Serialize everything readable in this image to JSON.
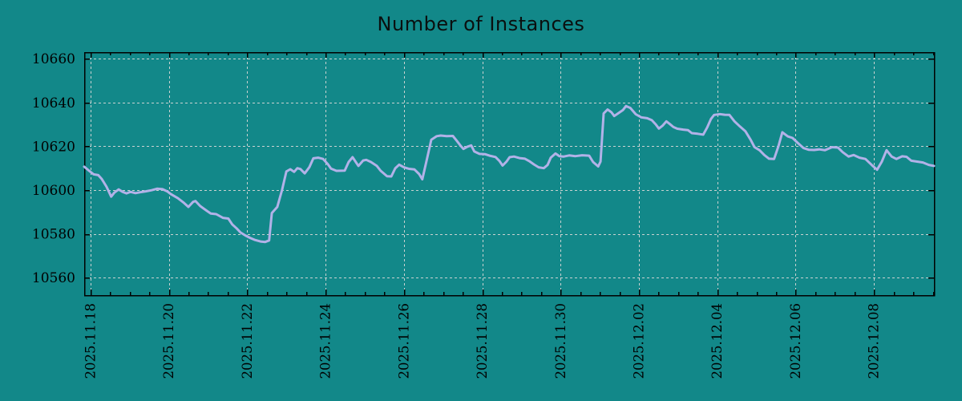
{
  "chart": {
    "title": "Number of Instances"
  },
  "chart_data": {
    "type": "line",
    "title": "Number of Instances",
    "xlabel": "",
    "ylabel": "",
    "grid": true,
    "legend_position": "none",
    "colors": {
      "background": "#128889",
      "line": "#b2b2e8",
      "grid": "#c9d2d1",
      "axis": "#000000",
      "text": "#000000"
    },
    "x_axis": {
      "unit": "days_since_2025.11.18",
      "range_days": [
        -0.16,
        21.53
      ],
      "major_tick_days": 2,
      "minor_tick_days": 0.5,
      "labels": [
        {
          "t": 0,
          "label": "2025.11.18"
        },
        {
          "t": 2,
          "label": "2025.11.20"
        },
        {
          "t": 4,
          "label": "2025.11.22"
        },
        {
          "t": 6,
          "label": "2025.11.24"
        },
        {
          "t": 8,
          "label": "2025.11.26"
        },
        {
          "t": 10,
          "label": "2025.11.28"
        },
        {
          "t": 12,
          "label": "2025.11.30"
        },
        {
          "t": 14,
          "label": "2025.12.02"
        },
        {
          "t": 16,
          "label": "2025.12.04"
        },
        {
          "t": 18,
          "label": "2025.12.06"
        },
        {
          "t": 20,
          "label": "2025.12.08"
        }
      ]
    },
    "y_axis": {
      "range": [
        10552,
        10663
      ],
      "ticks": [
        10560,
        10580,
        10600,
        10620,
        10640,
        10660
      ]
    },
    "series": [
      {
        "name": "instances",
        "color": "#b2b2e8",
        "points": [
          [
            -0.16,
            10610.7
          ],
          [
            -0.06,
            10609.2
          ],
          [
            0.08,
            10607.2
          ],
          [
            0.2,
            10606.8
          ],
          [
            0.29,
            10605.0
          ],
          [
            0.41,
            10601.5
          ],
          [
            0.53,
            10597.0
          ],
          [
            0.61,
            10598.8
          ],
          [
            0.72,
            10600.3
          ],
          [
            0.82,
            10599.2
          ],
          [
            0.92,
            10598.5
          ],
          [
            1.02,
            10599.2
          ],
          [
            1.15,
            10598.6
          ],
          [
            1.27,
            10599.0
          ],
          [
            1.41,
            10599.4
          ],
          [
            1.56,
            10599.9
          ],
          [
            1.7,
            10600.6
          ],
          [
            1.84,
            10600.4
          ],
          [
            1.97,
            10599.3
          ],
          [
            2.05,
            10598.2
          ],
          [
            2.23,
            10596.3
          ],
          [
            2.39,
            10594.1
          ],
          [
            2.5,
            10592.3
          ],
          [
            2.62,
            10594.6
          ],
          [
            2.68,
            10595.0
          ],
          [
            2.8,
            10592.7
          ],
          [
            2.97,
            10590.5
          ],
          [
            3.07,
            10589.3
          ],
          [
            3.21,
            10589.0
          ],
          [
            3.38,
            10587.3
          ],
          [
            3.52,
            10587.0
          ],
          [
            3.62,
            10584.3
          ],
          [
            3.73,
            10582.5
          ],
          [
            3.83,
            10580.6
          ],
          [
            3.95,
            10579.3
          ],
          [
            4.07,
            10578.2
          ],
          [
            4.2,
            10577.2
          ],
          [
            4.34,
            10576.5
          ],
          [
            4.46,
            10576.3
          ],
          [
            4.56,
            10577.0
          ],
          [
            4.63,
            10589.5
          ],
          [
            4.77,
            10592.3
          ],
          [
            4.89,
            10600.0
          ],
          [
            5.0,
            10608.5
          ],
          [
            5.1,
            10609.5
          ],
          [
            5.2,
            10608.3
          ],
          [
            5.28,
            10610.0
          ],
          [
            5.36,
            10609.6
          ],
          [
            5.47,
            10607.6
          ],
          [
            5.59,
            10610.5
          ],
          [
            5.69,
            10614.5
          ],
          [
            5.81,
            10614.8
          ],
          [
            5.94,
            10614.2
          ],
          [
            6.06,
            10611.8
          ],
          [
            6.14,
            10609.8
          ],
          [
            6.28,
            10608.8
          ],
          [
            6.49,
            10608.9
          ],
          [
            6.59,
            10612.8
          ],
          [
            6.69,
            10615.0
          ],
          [
            6.84,
            10611.0
          ],
          [
            6.96,
            10613.5
          ],
          [
            7.04,
            10613.8
          ],
          [
            7.16,
            10612.8
          ],
          [
            7.31,
            10611.0
          ],
          [
            7.41,
            10608.8
          ],
          [
            7.57,
            10606.3
          ],
          [
            7.68,
            10606.2
          ],
          [
            7.78,
            10609.9
          ],
          [
            7.88,
            10611.6
          ],
          [
            8.0,
            10610.4
          ],
          [
            8.13,
            10609.7
          ],
          [
            8.27,
            10609.4
          ],
          [
            8.39,
            10607.3
          ],
          [
            8.47,
            10604.9
          ],
          [
            8.6,
            10615.0
          ],
          [
            8.7,
            10623.0
          ],
          [
            8.84,
            10624.6
          ],
          [
            8.94,
            10624.9
          ],
          [
            9.09,
            10624.6
          ],
          [
            9.25,
            10624.7
          ],
          [
            9.35,
            10622.5
          ],
          [
            9.46,
            10620.0
          ],
          [
            9.52,
            10618.8
          ],
          [
            9.62,
            10619.8
          ],
          [
            9.72,
            10620.4
          ],
          [
            9.8,
            10617.6
          ],
          [
            9.93,
            10616.5
          ],
          [
            10.07,
            10616.4
          ],
          [
            10.21,
            10615.6
          ],
          [
            10.34,
            10615.1
          ],
          [
            10.44,
            10613.3
          ],
          [
            10.52,
            10611.2
          ],
          [
            10.62,
            10613.0
          ],
          [
            10.7,
            10615.0
          ],
          [
            10.81,
            10615.3
          ],
          [
            10.95,
            10614.6
          ],
          [
            11.09,
            10614.3
          ],
          [
            11.2,
            10613.2
          ],
          [
            11.32,
            10611.7
          ],
          [
            11.44,
            10610.4
          ],
          [
            11.57,
            10610.0
          ],
          [
            11.67,
            10611.5
          ],
          [
            11.75,
            10614.8
          ],
          [
            11.87,
            10616.7
          ],
          [
            11.97,
            10615.5
          ],
          [
            12.08,
            10615.3
          ],
          [
            12.22,
            10615.8
          ],
          [
            12.38,
            10615.5
          ],
          [
            12.55,
            10615.9
          ],
          [
            12.73,
            10615.7
          ],
          [
            12.83,
            10612.8
          ],
          [
            12.96,
            10610.8
          ],
          [
            13.02,
            10613.0
          ],
          [
            13.1,
            10635.0
          ],
          [
            13.2,
            10636.8
          ],
          [
            13.3,
            10635.5
          ],
          [
            13.37,
            10633.8
          ],
          [
            13.49,
            10635.3
          ],
          [
            13.59,
            10636.5
          ],
          [
            13.67,
            10638.4
          ],
          [
            13.78,
            10637.5
          ],
          [
            13.92,
            10634.6
          ],
          [
            14.06,
            10633.2
          ],
          [
            14.21,
            10632.8
          ],
          [
            14.33,
            10631.9
          ],
          [
            14.43,
            10630.0
          ],
          [
            14.51,
            10628.1
          ],
          [
            14.61,
            10629.5
          ],
          [
            14.7,
            10631.4
          ],
          [
            14.78,
            10630.3
          ],
          [
            14.88,
            10628.8
          ],
          [
            14.98,
            10628.0
          ],
          [
            15.13,
            10627.6
          ],
          [
            15.25,
            10627.4
          ],
          [
            15.35,
            10626.0
          ],
          [
            15.5,
            10625.7
          ],
          [
            15.64,
            10625.3
          ],
          [
            15.74,
            10628.5
          ],
          [
            15.84,
            10632.5
          ],
          [
            15.92,
            10634.3
          ],
          [
            16.07,
            10634.7
          ],
          [
            16.19,
            10634.4
          ],
          [
            16.31,
            10634.3
          ],
          [
            16.44,
            10631.4
          ],
          [
            16.58,
            10629.0
          ],
          [
            16.72,
            10626.8
          ],
          [
            16.85,
            10623.0
          ],
          [
            16.95,
            10619.6
          ],
          [
            17.08,
            10618.2
          ],
          [
            17.2,
            10616.0
          ],
          [
            17.32,
            10614.3
          ],
          [
            17.45,
            10614.2
          ],
          [
            17.56,
            10620.0
          ],
          [
            17.66,
            10626.4
          ],
          [
            17.8,
            10624.5
          ],
          [
            17.92,
            10623.8
          ],
          [
            18.05,
            10621.6
          ],
          [
            18.2,
            10619.2
          ],
          [
            18.33,
            10618.4
          ],
          [
            18.47,
            10618.3
          ],
          [
            18.6,
            10618.6
          ],
          [
            18.75,
            10618.2
          ],
          [
            18.93,
            10619.6
          ],
          [
            19.08,
            10619.4
          ],
          [
            19.2,
            10617.3
          ],
          [
            19.35,
            10615.3
          ],
          [
            19.48,
            10616.0
          ],
          [
            19.63,
            10614.8
          ],
          [
            19.78,
            10614.2
          ],
          [
            19.95,
            10611.3
          ],
          [
            20.08,
            10609.3
          ],
          [
            20.2,
            10613.0
          ],
          [
            20.32,
            10618.2
          ],
          [
            20.45,
            10615.3
          ],
          [
            20.57,
            10614.2
          ],
          [
            20.72,
            10615.4
          ],
          [
            20.83,
            10615.2
          ],
          [
            20.95,
            10613.4
          ],
          [
            21.1,
            10613.0
          ],
          [
            21.25,
            10612.6
          ],
          [
            21.4,
            10611.5
          ],
          [
            21.53,
            10611.0
          ]
        ]
      }
    ]
  }
}
